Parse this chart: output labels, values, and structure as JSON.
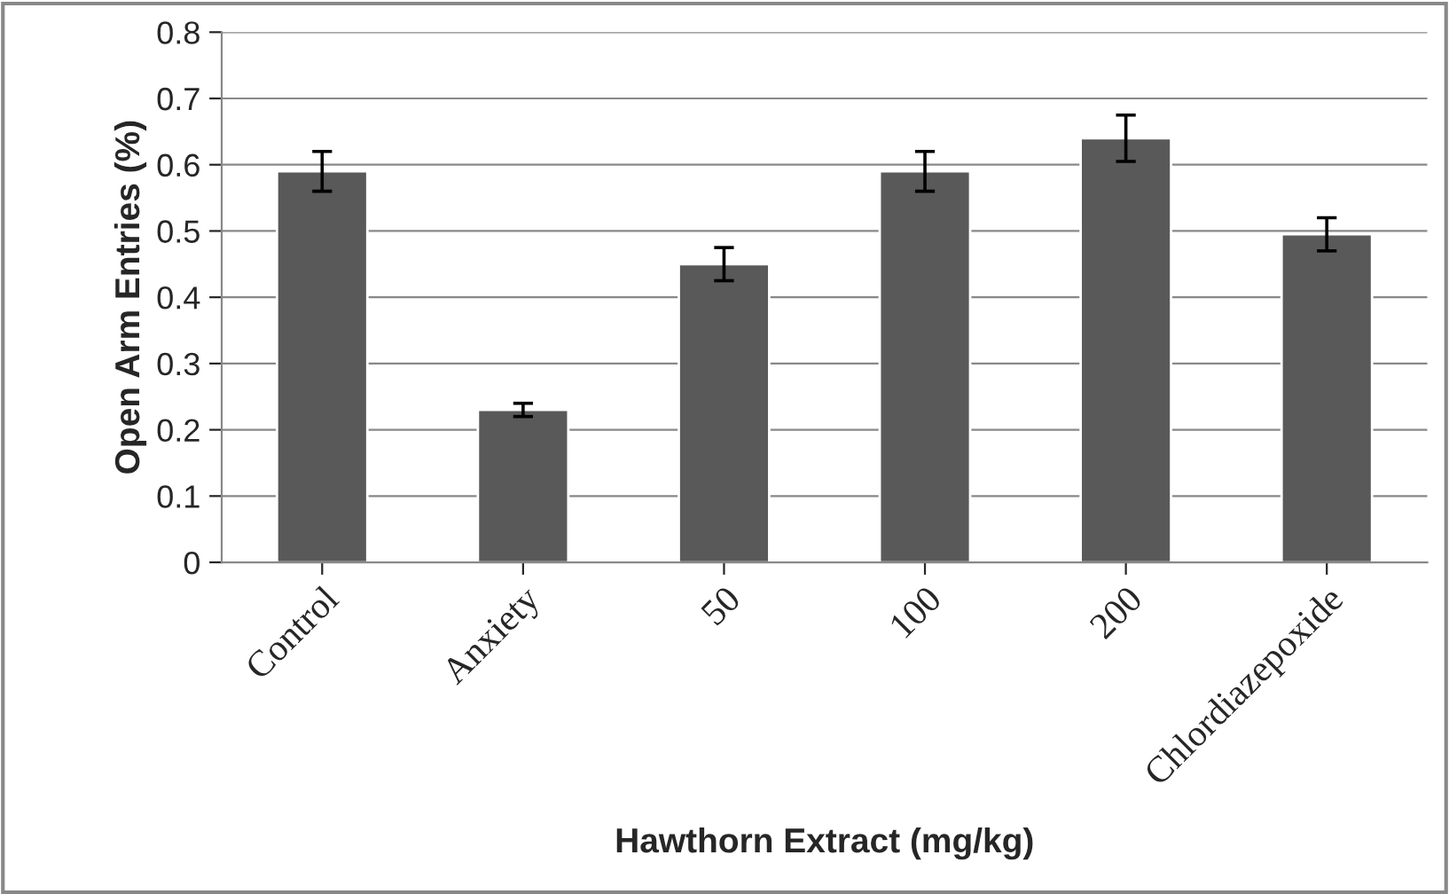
{
  "chart_data": {
    "type": "bar",
    "xlabel": "Hawthorn Extract (mg/kg)",
    "ylabel": "Open Arm Entries (%)",
    "categories": [
      "Control",
      "Anxiety",
      "50",
      "100",
      "200",
      "Chlordiazepoxide"
    ],
    "values": [
      0.59,
      0.23,
      0.45,
      0.59,
      0.64,
      0.495
    ],
    "errors": [
      0.03,
      0.01,
      0.025,
      0.03,
      0.035,
      0.025
    ],
    "color": "#595959",
    "ylim": [
      0,
      0.8
    ],
    "yticks": [
      0,
      0.1,
      0.2,
      0.3,
      0.4,
      0.5,
      0.6,
      0.7,
      0.8
    ],
    "grid": "y",
    "legend": false
  }
}
